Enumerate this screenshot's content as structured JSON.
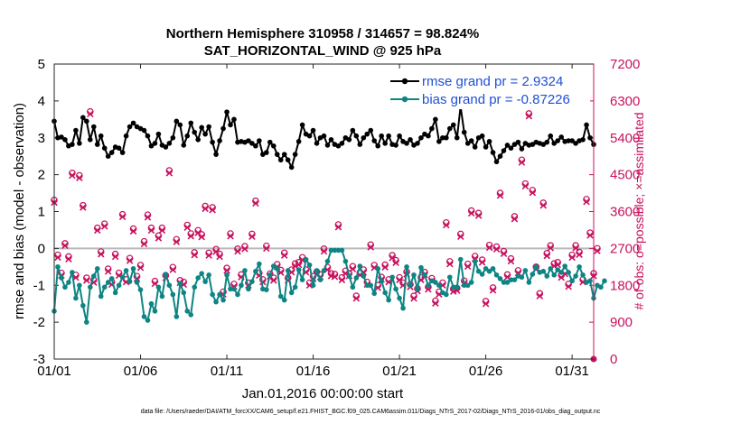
{
  "chart_data": {
    "type": "line",
    "title": "Northern Hemisphere 310958 / 314657 = 98.824%",
    "subtitle": "SAT_HORIZONTAL_WIND @ 925 hPa",
    "xlabel": "Jan.01,2016 00:00:00 start",
    "ylabel": "rmse and bias (model - observation)",
    "y2label": "# of obs: o=possible; ×=assimilated",
    "footer": "data file: /Users/raeder/DAI/ATM_forcXX/CAM6_setup/f.e21.FHIST_BGC.f09_025.CAM6assim.011/Diags_NTrS_2017-02/Diags_NTrS_2016-01/obs_diag_output.nc",
    "xlim": [
      1,
      32.25
    ],
    "ylim": [
      -3,
      5
    ],
    "y2lim": [
      0,
      7200
    ],
    "xticks": [
      1,
      6,
      11,
      16,
      21,
      26,
      31
    ],
    "xticklabels": [
      "01/01",
      "01/06",
      "01/11",
      "01/16",
      "01/21",
      "01/26",
      "01/31"
    ],
    "yticks": [
      -3,
      -2,
      -1,
      0,
      1,
      2,
      3,
      4,
      5
    ],
    "y2ticks": [
      0,
      900,
      1800,
      2700,
      3600,
      4500,
      5400,
      6300,
      7200
    ],
    "zero_line": 0,
    "legend_position": "top-right",
    "colors": {
      "rmse": "#000000",
      "bias": "#0f8484",
      "obs": "#c8125e",
      "zero": "#b9b9b9",
      "legend_text": "#1f4fd6"
    },
    "series": [
      {
        "name": "rmse grand pr = 2.9324",
        "values": [
          3.45,
          3.0,
          3.02,
          2.95,
          2.78,
          2.82,
          3.2,
          2.85,
          3.55,
          3.45,
          2.95,
          3.3,
          2.82,
          3.05,
          2.72,
          2.5,
          2.6,
          2.75,
          2.72,
          2.6,
          3.05,
          3.3,
          3.4,
          3.3,
          3.25,
          3.2,
          3.05,
          2.78,
          2.85,
          3.1,
          2.8,
          2.75,
          2.85,
          3.0,
          3.45,
          3.35,
          2.8,
          3.05,
          3.4,
          3.15,
          2.95,
          3.28,
          3.1,
          3.3,
          2.88,
          2.55,
          2.92,
          3.25,
          3.7,
          3.35,
          3.5,
          2.88,
          2.9,
          2.88,
          2.92,
          2.85,
          2.78,
          2.92,
          2.55,
          2.6,
          2.88,
          2.78,
          2.55,
          2.4,
          2.55,
          2.4,
          2.2,
          2.55,
          2.9,
          3.35,
          3.1,
          3.05,
          3.2,
          2.85,
          3.0,
          3.05,
          2.8,
          2.95,
          2.82,
          2.78,
          2.85,
          3.0,
          2.95,
          3.2,
          3.05,
          2.82,
          3.0,
          3.1,
          3.2,
          2.92,
          2.78,
          3.05,
          2.85,
          3.05,
          2.82,
          2.8,
          3.05,
          2.9,
          2.85,
          2.95,
          2.8,
          2.85,
          3.0,
          3.1,
          3.05,
          3.25,
          3.5,
          2.9,
          3.0,
          3.0,
          3.25,
          3.35,
          3.0,
          3.85,
          3.15,
          2.85,
          2.92,
          2.75,
          3.0,
          3.05,
          2.75,
          2.9,
          2.6,
          2.35,
          2.5,
          2.65,
          2.8,
          2.72,
          2.82,
          2.88,
          2.7,
          2.85,
          2.8,
          2.82,
          2.88,
          2.85,
          2.82,
          2.88,
          3.05,
          2.85,
          2.92,
          3.02,
          2.9,
          2.92,
          2.92,
          2.85,
          2.92,
          2.95,
          3.35,
          3.0,
          2.82
        ]
      },
      {
        "name": "bias grand pr = -0.87226",
        "values": [
          -1.7,
          -0.5,
          -0.8,
          -1.05,
          -0.92,
          -0.65,
          -1.35,
          -1.0,
          -1.55,
          -2.0,
          -1.05,
          -0.75,
          -0.55,
          -1.3,
          -1.05,
          -0.92,
          -0.82,
          -1.2,
          -1.0,
          -0.78,
          -0.6,
          -0.9,
          -0.55,
          -0.92,
          -1.12,
          -1.85,
          -1.95,
          -1.5,
          -1.7,
          -1.05,
          -1.3,
          -0.7,
          -1.0,
          -1.25,
          -1.85,
          -0.95,
          -1.2,
          -1.7,
          -1.8,
          -1.05,
          -0.8,
          -0.68,
          -0.9,
          -0.72,
          -1.25,
          -1.45,
          -1.25,
          -1.4,
          -0.72,
          -1.1,
          -1.1,
          -1.25,
          -1.0,
          -0.6,
          -1.1,
          -0.9,
          -0.62,
          -0.42,
          -1.1,
          -1.12,
          -0.72,
          -0.48,
          -0.55,
          -1.3,
          -1.4,
          -0.6,
          -1.2,
          -1.05,
          -0.58,
          -0.85,
          -0.3,
          -0.45,
          -1.0,
          -0.6,
          -0.85,
          -0.6,
          -0.35,
          -0.05,
          -0.05,
          -0.05,
          -0.05,
          -0.35,
          -0.75,
          -1.05,
          -0.8,
          -0.48,
          -0.75,
          -1.0,
          -1.0,
          -1.22,
          -0.55,
          -0.88,
          -1.2,
          -1.4,
          -0.78,
          -1.1,
          -1.35,
          -1.62,
          -0.5,
          -1.0,
          -0.72,
          -1.1,
          -0.52,
          -0.72,
          -1.0,
          -0.88,
          -0.92,
          -1.0,
          -1.2,
          -1.25,
          -0.78,
          -1.05,
          -1.05,
          -0.3,
          -1.0,
          -1.0,
          -0.92,
          -0.35,
          -0.62,
          -0.7,
          -0.55,
          -0.62,
          -0.55,
          -0.72,
          -0.82,
          -0.92,
          -0.92,
          -0.85,
          -0.85,
          -0.75,
          -0.78,
          -0.6,
          -0.92,
          -0.7,
          -0.5,
          -0.65,
          -0.62,
          -0.75,
          -0.55,
          -0.72,
          -0.58,
          -0.65,
          -0.48,
          -0.65,
          -0.88,
          -0.75,
          -0.5,
          -0.72,
          -0.92,
          -0.88,
          -1.35,
          -1.0,
          -1.05,
          -0.88
        ]
      },
      {
        "name": "# of obs possible (o)",
        "values": [
          3880,
          2540,
          2100,
          2820,
          2500,
          4540,
          2050,
          4480,
          3750,
          1980,
          6040,
          1930,
          3200,
          2620,
          3300,
          2200,
          1880,
          2560,
          2100,
          3530,
          1940,
          2460,
          3180,
          2020,
          2290,
          2870,
          3520,
          3200,
          1900,
          3010,
          3200,
          2040,
          4600,
          2240,
          2920,
          1920,
          1880,
          3270,
          3060,
          2600,
          3140,
          3040,
          3730,
          2590,
          3700,
          2680,
          2560,
          1640,
          2220,
          3060,
          1830,
          2690,
          2060,
          2750,
          1860,
          3050,
          3860,
          2100,
          1940,
          2760,
          2080,
          1980,
          2310,
          2170,
          2590,
          1980,
          2180,
          2330,
          2360,
          2480,
          2180,
          1860,
          2020,
          2130,
          2060,
          2690,
          2240,
          2090,
          2070,
          3280,
          1990,
          2150,
          2090,
          2260,
          1540,
          2110,
          2180,
          1880,
          2790,
          2290,
          1800,
          2000,
          2300,
          1940,
          2530,
          2410,
          1990,
          1860,
          2130,
          1820,
          1540,
          1720,
          1990,
          2120,
          1760,
          1970,
          1420,
          1640,
          1860,
          3330,
          2380,
          1710,
          1730,
          3050,
          1910,
          2320,
          3620,
          2510,
          3560,
          2420,
          1410,
          2780,
          1740,
          2740,
          4050,
          2630,
          2060,
          2450,
          3480,
          2160,
          4860,
          4280,
          5990,
          4120,
          2250,
          1600,
          3810,
          2580,
          2770,
          2330,
          2360,
          2050,
          2140,
          1830,
          2540,
          2770,
          2610,
          1940,
          3900,
          3080,
          2090,
          2700
        ]
      },
      {
        "name": "# of obs assimilated (×)",
        "values": [
          3820,
          2480,
          2040,
          2770,
          2440,
          4480,
          1990,
          4420,
          3700,
          1920,
          5980,
          1870,
          3140,
          2560,
          3240,
          2140,
          1820,
          2500,
          2040,
          3470,
          1880,
          2400,
          3120,
          1960,
          2230,
          2810,
          3460,
          3140,
          1840,
          2950,
          3140,
          1980,
          4540,
          2180,
          2860,
          1860,
          1820,
          3210,
          3000,
          2540,
          3080,
          2980,
          3670,
          2530,
          3640,
          2620,
          2500,
          1580,
          2160,
          3000,
          1770,
          2630,
          2000,
          2690,
          1800,
          2990,
          3800,
          2040,
          1880,
          2700,
          2020,
          1920,
          2250,
          2110,
          2530,
          1920,
          2120,
          2270,
          2300,
          2420,
          2120,
          1800,
          1960,
          2070,
          2000,
          2630,
          2180,
          2030,
          2010,
          3220,
          1930,
          2090,
          2030,
          2200,
          1480,
          2050,
          2120,
          1820,
          2730,
          2230,
          1740,
          1940,
          2240,
          1880,
          2470,
          2350,
          1930,
          1800,
          2070,
          1760,
          1480,
          1660,
          1930,
          2060,
          1700,
          1910,
          1360,
          1580,
          1800,
          3270,
          2320,
          1650,
          1670,
          2990,
          1850,
          2260,
          3560,
          2450,
          3500,
          2360,
          1350,
          2720,
          1680,
          2680,
          3990,
          2570,
          2000,
          2390,
          3420,
          2100,
          4800,
          4220,
          5930,
          4060,
          2190,
          1540,
          3750,
          2520,
          2710,
          2270,
          2300,
          1990,
          2080,
          1770,
          2480,
          2710,
          2550,
          1880,
          3840,
          3020,
          2030,
          2640
        ]
      }
    ]
  }
}
